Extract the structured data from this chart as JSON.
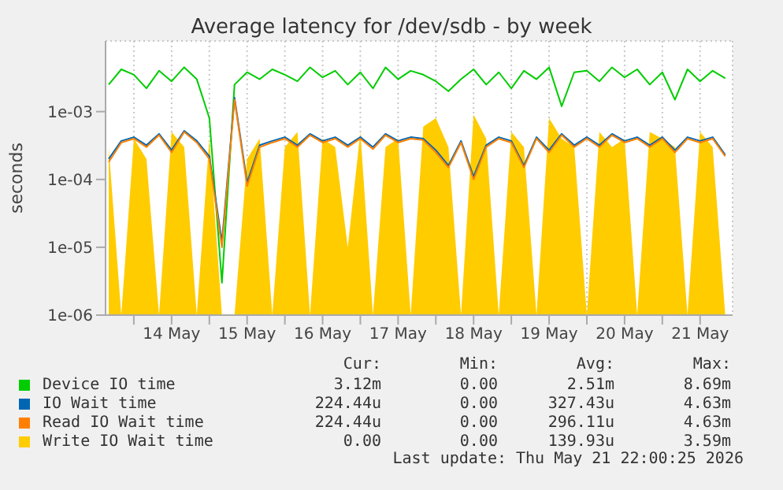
{
  "chart_data": {
    "type": "line",
    "title": "Average latency for /dev/sdb - by week",
    "ylabel": "seconds",
    "log": "y",
    "grid": true,
    "legend": "bottom",
    "marker": "none",
    "x": [
      "2026-05-13T16:00",
      "2026-05-13T20:00",
      "2026-05-14T00:00",
      "2026-05-14T04:00",
      "2026-05-14T08:00",
      "2026-05-14T12:00",
      "2026-05-14T16:00",
      "2026-05-14T20:00",
      "2026-05-15T00:00",
      "2026-05-15T04:00",
      "2026-05-15T08:00",
      "2026-05-15T12:00",
      "2026-05-15T16:00",
      "2026-05-15T20:00",
      "2026-05-16T00:00",
      "2026-05-16T04:00",
      "2026-05-16T08:00",
      "2026-05-16T12:00",
      "2026-05-16T16:00",
      "2026-05-16T20:00",
      "2026-05-17T00:00",
      "2026-05-17T04:00",
      "2026-05-17T08:00",
      "2026-05-17T12:00",
      "2026-05-17T16:00",
      "2026-05-17T20:00",
      "2026-05-18T00:00",
      "2026-05-18T04:00",
      "2026-05-18T08:00",
      "2026-05-18T12:00",
      "2026-05-18T16:00",
      "2026-05-18T20:00",
      "2026-05-19T00:00",
      "2026-05-19T04:00",
      "2026-05-19T08:00",
      "2026-05-19T12:00",
      "2026-05-19T16:00",
      "2026-05-19T20:00",
      "2026-05-20T00:00",
      "2026-05-20T04:00",
      "2026-05-20T08:00",
      "2026-05-20T12:00",
      "2026-05-20T16:00",
      "2026-05-20T20:00",
      "2026-05-21T00:00",
      "2026-05-21T04:00",
      "2026-05-21T08:00",
      "2026-05-21T12:00",
      "2026-05-21T16:00",
      "2026-05-21T20:00"
    ],
    "xlim": [
      "2026-05-13T15:00",
      "2026-05-21T22:20"
    ],
    "xticks": [
      {
        "value": "2026-05-14T00:00",
        "label": null
      },
      {
        "value": "2026-05-14T12:00",
        "label": "14 May"
      },
      {
        "value": "2026-05-15T00:00",
        "label": null
      },
      {
        "value": "2026-05-15T12:00",
        "label": "15 May"
      },
      {
        "value": "2026-05-16T00:00",
        "label": null
      },
      {
        "value": "2026-05-16T12:00",
        "label": "16 May"
      },
      {
        "value": "2026-05-17T00:00",
        "label": null
      },
      {
        "value": "2026-05-17T12:00",
        "label": "17 May"
      },
      {
        "value": "2026-05-18T00:00",
        "label": null
      },
      {
        "value": "2026-05-18T12:00",
        "label": "18 May"
      },
      {
        "value": "2026-05-19T00:00",
        "label": null
      },
      {
        "value": "2026-05-19T12:00",
        "label": "19 May"
      },
      {
        "value": "2026-05-20T00:00",
        "label": null
      },
      {
        "value": "2026-05-20T12:00",
        "label": "20 May"
      },
      {
        "value": "2026-05-21T00:00",
        "label": null
      },
      {
        "value": "2026-05-21T12:00",
        "label": "21 May"
      }
    ],
    "ylim": [
      1e-06,
      0.011
    ],
    "yticks": [
      {
        "value": 1e-06,
        "label": "1e-06"
      },
      {
        "value": 1e-05,
        "label": "1e-05"
      },
      {
        "value": 0.0001,
        "label": "1e-04"
      },
      {
        "value": 0.001,
        "label": "1e-03"
      }
    ],
    "series": [
      {
        "name": "Device IO time",
        "color": "#00cc00",
        "values": [
          0.0025,
          0.0042,
          0.0035,
          0.0022,
          0.004,
          0.0028,
          0.0045,
          0.003,
          0.0008,
          3e-06,
          0.0025,
          0.0038,
          0.003,
          0.0042,
          0.0035,
          0.0028,
          0.0045,
          0.0032,
          0.004,
          0.0025,
          0.0038,
          0.0022,
          0.0045,
          0.003,
          0.004,
          0.0035,
          0.0028,
          0.002,
          0.003,
          0.0042,
          0.0025,
          0.0038,
          0.0022,
          0.004,
          0.003,
          0.0045,
          0.0012,
          0.0038,
          0.004,
          0.0028,
          0.0045,
          0.0032,
          0.0042,
          0.0025,
          0.0038,
          0.0015,
          0.0042,
          0.0028,
          0.004,
          0.0031
        ]
      },
      {
        "name": "IO Wait time",
        "color": "#0066b3",
        "values": [
          0.0002,
          0.00037,
          0.00042,
          0.00032,
          0.00047,
          0.00027,
          0.00052,
          0.00037,
          0.00022,
          1.2e-05,
          0.0016,
          9e-05,
          0.00032,
          0.00037,
          0.00042,
          0.00032,
          0.00047,
          0.00037,
          0.00042,
          0.00032,
          0.00042,
          0.0003,
          0.00047,
          0.00037,
          0.00042,
          0.0004,
          0.00027,
          0.00016,
          0.00037,
          0.00011,
          0.00032,
          0.00042,
          0.00037,
          0.00016,
          0.00042,
          0.00027,
          0.00047,
          0.00032,
          0.00042,
          0.00032,
          0.00047,
          0.00037,
          0.00042,
          0.00032,
          0.00042,
          0.00027,
          0.00042,
          0.00037,
          0.00042,
          0.00023
        ]
      },
      {
        "name": "Read IO Wait time",
        "color": "#ff8000",
        "values": [
          0.00018,
          0.00035,
          0.0004,
          0.0003,
          0.00045,
          0.00025,
          0.0005,
          0.00035,
          0.0002,
          1e-05,
          0.0015,
          8e-05,
          0.0003,
          0.00035,
          0.0004,
          0.0003,
          0.00045,
          0.00035,
          0.0004,
          0.0003,
          0.0004,
          0.00028,
          0.00045,
          0.00035,
          0.0004,
          0.00038,
          0.00025,
          0.00015,
          0.00035,
          0.0001,
          0.0003,
          0.0004,
          0.00035,
          0.00015,
          0.0004,
          0.00025,
          0.00045,
          0.0003,
          0.0004,
          0.0003,
          0.00045,
          0.00035,
          0.0004,
          0.0003,
          0.0004,
          0.00025,
          0.0004,
          0.00035,
          0.0004,
          0.00022
        ]
      },
      {
        "name": "Write IO Wait time",
        "type": "area",
        "color": "#ffcc00",
        "values": [
          0.0003,
          1e-06,
          0.0004,
          0.0002,
          1e-06,
          0.0005,
          0.0003,
          1e-06,
          0.0004,
          1e-06,
          1e-06,
          0.0002,
          0.0004,
          1e-06,
          0.0003,
          0.0005,
          1e-06,
          0.0004,
          0.0003,
          1e-05,
          0.0005,
          1e-06,
          0.0003,
          0.0004,
          1e-06,
          0.0006,
          0.0008,
          0.0003,
          1e-06,
          0.0009,
          0.0004,
          1e-06,
          0.0005,
          0.0003,
          1e-06,
          0.0008,
          0.0004,
          0.0003,
          1e-06,
          0.0005,
          0.0003,
          0.0004,
          1e-06,
          0.0005,
          0.0004,
          0.0003,
          1e-06,
          0.0005,
          0.0003,
          1e-06
        ]
      }
    ],
    "annotations": [
      "Cur:",
      "Min:",
      "Avg:",
      "Max:",
      "3.12m",
      "0.00",
      "2.51m",
      "8.69m",
      "224.44u",
      "0.00",
      "327.43u",
      "4.63m",
      "224.44u",
      "0.00",
      "296.11u",
      "4.63m",
      "0.00",
      "0.00",
      "139.93u",
      "3.59m",
      "Last update: Thu May 21 22:00:25 2026"
    ]
  }
}
